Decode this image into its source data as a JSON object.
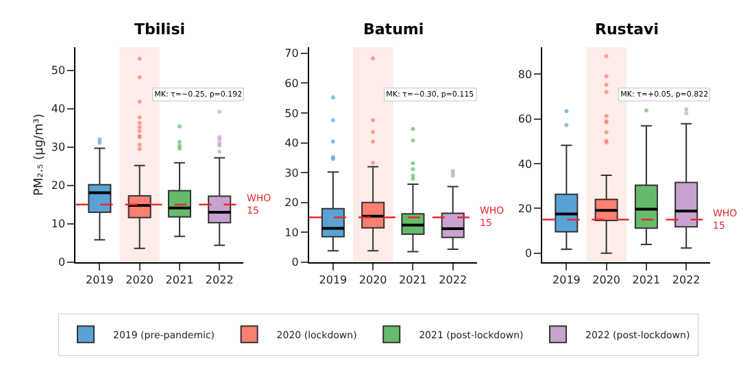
{
  "chart_data": [
    {
      "type": "box",
      "title": "Tbilisi",
      "ylabel": "PM₂.₅ (μg/m³)",
      "categories": [
        "2019",
        "2020",
        "2021",
        "2022"
      ],
      "ylim": [
        0,
        56
      ],
      "yticks": [
        0,
        10,
        20,
        30,
        40,
        50
      ],
      "legend": "bottom",
      "annotations": [
        "MK: τ=−0.25, p=0.192"
      ],
      "ref_lines": [
        {
          "axis": "y",
          "value": 15,
          "label": "WHO\n15",
          "color": "#e8282b",
          "line_style": "dashed"
        }
      ],
      "bands": [
        {
          "axis": "x",
          "from": "2020",
          "to": "2020",
          "color": "#fdece8"
        }
      ],
      "series": [
        {
          "name": "2019 (pre-pandemic)",
          "color": "#5aa2d6",
          "boxes": [
            {
              "low": 5.8,
              "q1": 13,
              "median": 18.1,
              "q3": 20.2,
              "high": 29.7,
              "outliers": [
                31.1,
                32
              ]
            },
            null,
            null,
            null
          ]
        },
        {
          "name": "2020 (lockdown)",
          "color": "#fa8072",
          "boxes": [
            null,
            {
              "low": 3.6,
              "q1": 11.6,
              "median": 14.8,
              "q3": 17.3,
              "high": 25.2,
              "outliers": [
                29.5,
                30.6,
                32.6,
                32.9,
                34.2,
                35.2,
                36.3,
                37.7,
                41.8,
                48.2,
                53
              ]
            },
            null,
            null
          ]
        },
        {
          "name": "2021 (post-lockdown)",
          "color": "#66bb6a",
          "boxes": [
            null,
            null,
            {
              "low": 6.7,
              "q1": 11.8,
              "median": 14.1,
              "q3": 18.6,
              "high": 25.9,
              "outliers": [
                29.6,
                30.3,
                31.3,
                35.4
              ]
            },
            null
          ]
        },
        {
          "name": "2022 (post-lockdown)",
          "color": "#c9a3cf",
          "boxes": [
            null,
            null,
            null,
            {
              "low": 4.4,
              "q1": 10.3,
              "median": 13,
              "q3": 17.2,
              "high": 27.2,
              "outliers": [
                28.8,
                30.4,
                31,
                31.9,
                32.6,
                39.2
              ]
            }
          ]
        }
      ]
    },
    {
      "type": "box",
      "title": "Batumi",
      "categories": [
        "2019",
        "2020",
        "2021",
        "2022"
      ],
      "ylim": [
        0,
        72
      ],
      "yticks": [
        0,
        10,
        20,
        30,
        40,
        50,
        60,
        70
      ],
      "annotations": [
        "MK: τ=−0.30, p=0.115"
      ],
      "ref_lines": [
        {
          "axis": "y",
          "value": 15,
          "label": "WHO\n15",
          "color": "#e8282b",
          "line_style": "dashed"
        }
      ],
      "bands": [
        {
          "axis": "x",
          "from": "2020",
          "to": "2020",
          "color": "#fdece8"
        }
      ],
      "series": [
        {
          "color": "#5aa2d6",
          "boxes": [
            {
              "low": 3.8,
              "q1": 8.5,
              "median": 11.3,
              "q3": 17.9,
              "high": 30.2,
              "outliers": [
                34.6,
                35.2,
                40.4,
                47.6,
                55.2
              ]
            },
            null,
            null,
            null
          ]
        },
        {
          "color": "#fa8072",
          "boxes": [
            null,
            {
              "low": 3.8,
              "q1": 11.5,
              "median": 15.4,
              "q3": 20,
              "high": 32,
              "outliers": [
                33.3,
                40.4,
                43.6,
                47.6,
                68.3
              ]
            },
            null,
            null
          ]
        },
        {
          "color": "#66bb6a",
          "boxes": [
            null,
            null,
            {
              "low": 3.5,
              "q1": 9.4,
              "median": 12.4,
              "q3": 16.2,
              "high": 26.1,
              "outliers": [
                27.9,
                29,
                31.2,
                33.2,
                40.8,
                44.6
              ]
            },
            null
          ]
        },
        {
          "color": "#c9a3cf",
          "boxes": [
            null,
            null,
            null,
            {
              "low": 4.3,
              "q1": 8.3,
              "median": 11.2,
              "q3": 16.4,
              "high": 25.3,
              "outliers": [
                29,
                29.8,
                30.6
              ]
            }
          ]
        }
      ]
    },
    {
      "type": "box",
      "title": "Rustavi",
      "categories": [
        "2019",
        "2020",
        "2021",
        "2022"
      ],
      "ylim": [
        -4,
        92
      ],
      "yticks": [
        0,
        20,
        40,
        60,
        80
      ],
      "annotations": [
        "MK: τ=+0.05, p=0.822"
      ],
      "ref_lines": [
        {
          "axis": "y",
          "value": 15,
          "label": "WHO\n15",
          "color": "#e8282b",
          "line_style": "dashed"
        }
      ],
      "bands": [
        {
          "axis": "x",
          "from": "2020",
          "to": "2020",
          "color": "#fdece8"
        }
      ],
      "series": [
        {
          "color": "#5aa2d6",
          "boxes": [
            {
              "low": 1.8,
              "q1": 9.6,
              "median": 17.5,
              "q3": 26.3,
              "high": 48.2,
              "outliers": [
                57.3,
                63.5
              ]
            },
            null,
            null,
            null
          ]
        },
        {
          "color": "#fa8072",
          "boxes": [
            null,
            {
              "low": 0,
              "q1": 14.6,
              "median": 19.1,
              "q3": 24,
              "high": 34.8,
              "outliers": [
                49.5,
                50.2,
                54,
                58.5,
                59,
                61.3,
                72,
                75.2,
                79,
                88
              ]
            },
            null,
            null
          ]
        },
        {
          "color": "#66bb6a",
          "boxes": [
            null,
            null,
            {
              "low": 3.9,
              "q1": 11.2,
              "median": 19.7,
              "q3": 30.4,
              "high": 56.9,
              "outliers": [
                63.8
              ]
            },
            null
          ]
        },
        {
          "color": "#c9a3cf",
          "boxes": [
            null,
            null,
            null,
            {
              "low": 2.3,
              "q1": 11.8,
              "median": 18.8,
              "q3": 31.6,
              "high": 57.8,
              "outliers": [
                62.6,
                64.3
              ]
            }
          ]
        }
      ]
    }
  ]
}
